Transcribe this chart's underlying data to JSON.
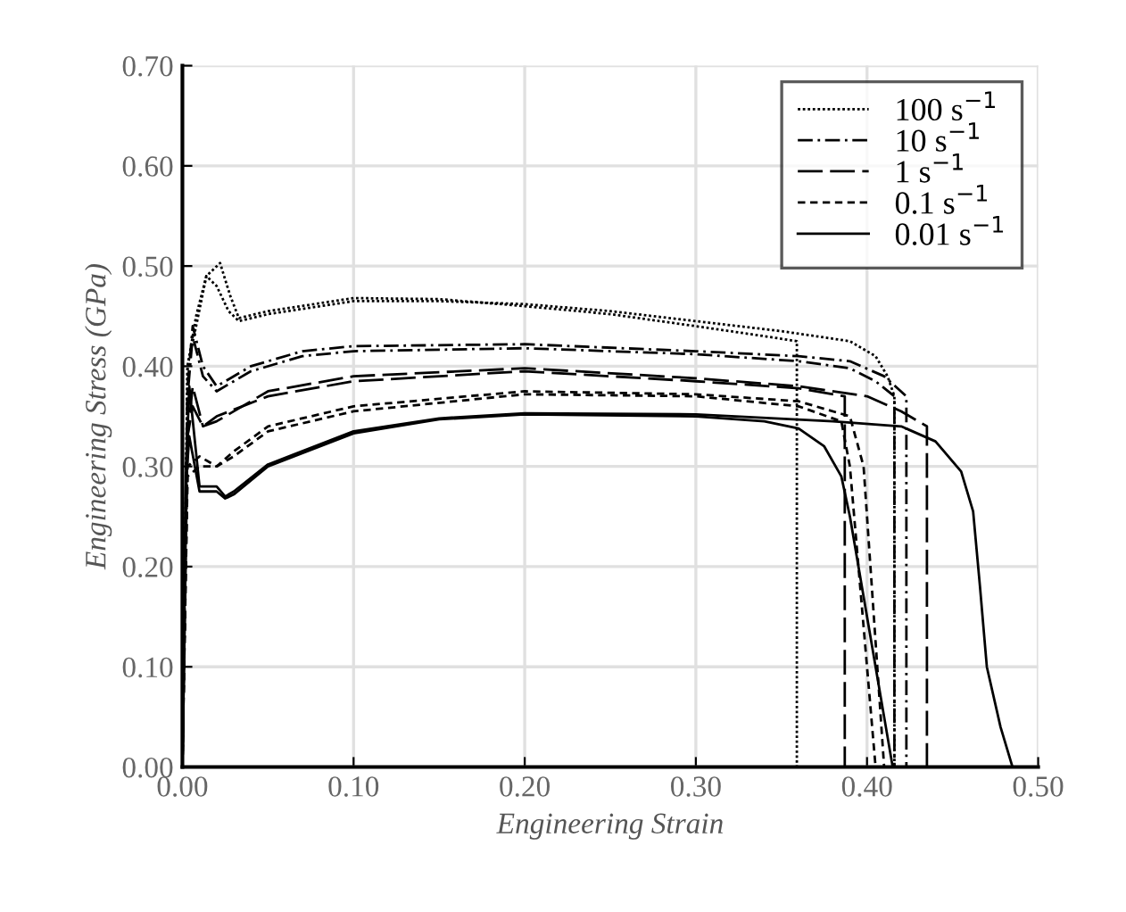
{
  "chart_data": {
    "type": "line",
    "xlabel": "Engineering Strain",
    "ylabel": "Engineering Stress (GPa)",
    "xlim": [
      0,
      0.5
    ],
    "ylim": [
      0,
      0.7
    ],
    "xticks": [
      {
        "value": 0,
        "label": "0.00"
      },
      {
        "value": 0.1,
        "label": "0.10"
      },
      {
        "value": 0.2,
        "label": "0.20"
      },
      {
        "value": 0.3,
        "label": "0.30"
      },
      {
        "value": 0.4,
        "label": "0.40"
      },
      {
        "value": 0.5,
        "label": "0.50"
      }
    ],
    "yticks": [
      {
        "value": 0,
        "label": "0.00"
      },
      {
        "value": 0.1,
        "label": "0.10"
      },
      {
        "value": 0.2,
        "label": "0.20"
      },
      {
        "value": 0.3,
        "label": "0.30"
      },
      {
        "value": 0.4,
        "label": "0.40"
      },
      {
        "value": 0.5,
        "label": "0.50"
      },
      {
        "value": 0.6,
        "label": "0.60"
      },
      {
        "value": 0.7,
        "label": "0.70"
      }
    ],
    "grid": true,
    "legend": "top right",
    "marker": "none",
    "series": [
      {
        "name": "100 s$^{−1}$",
        "color": "#000000",
        "line_style": "dotted",
        "x": [
          0,
          0.003,
          0.008,
          0.014,
          0.022,
          0.028,
          0.033,
          0.05,
          0.1,
          0.15,
          0.2,
          0.25,
          0.3,
          0.34,
          0.359,
          0.359
        ],
        "values": [
          0,
          0.4,
          0.45,
          0.49,
          0.503,
          0.47,
          0.448,
          0.455,
          0.468,
          0.467,
          0.46,
          0.452,
          0.44,
          0.43,
          0.425,
          0
        ]
      },
      {
        "color": "#000000",
        "line_style": "dotted",
        "x": [
          0,
          0.003,
          0.008,
          0.014,
          0.02,
          0.027,
          0.033,
          0.05,
          0.1,
          0.15,
          0.2,
          0.25,
          0.3,
          0.35,
          0.39,
          0.405,
          0.412,
          0.416,
          0.416
        ],
        "values": [
          0,
          0.4,
          0.44,
          0.49,
          0.48,
          0.455,
          0.445,
          0.452,
          0.465,
          0.465,
          0.462,
          0.455,
          0.445,
          0.435,
          0.425,
          0.41,
          0.39,
          0.37,
          0
        ]
      },
      {
        "name": "10 s$^{−1}$",
        "color": "#000000",
        "line_style": "dashdot",
        "x": [
          0,
          0.003,
          0.006,
          0.012,
          0.02,
          0.04,
          0.07,
          0.1,
          0.2,
          0.3,
          0.36,
          0.39,
          0.41,
          0.423,
          0.423
        ],
        "values": [
          0,
          0.38,
          0.44,
          0.4,
          0.38,
          0.4,
          0.415,
          0.42,
          0.422,
          0.415,
          0.41,
          0.405,
          0.39,
          0.37,
          0
        ]
      },
      {
        "color": "#000000",
        "line_style": "dashdot",
        "x": [
          0,
          0.003,
          0.006,
          0.012,
          0.02,
          0.04,
          0.07,
          0.1,
          0.2,
          0.3,
          0.36,
          0.39,
          0.405,
          0.416,
          0.416
        ],
        "values": [
          0,
          0.37,
          0.43,
          0.39,
          0.375,
          0.395,
          0.41,
          0.415,
          0.418,
          0.412,
          0.405,
          0.398,
          0.385,
          0.37,
          0
        ]
      },
      {
        "name": "1 s$^{−1}$",
        "color": "#000000",
        "line_style": "longdash",
        "x": [
          0,
          0.003,
          0.006,
          0.012,
          0.02,
          0.05,
          0.1,
          0.2,
          0.3,
          0.36,
          0.4,
          0.42,
          0.435,
          0.435
        ],
        "values": [
          0,
          0.33,
          0.38,
          0.34,
          0.345,
          0.375,
          0.39,
          0.398,
          0.388,
          0.38,
          0.37,
          0.355,
          0.34,
          0
        ]
      },
      {
        "color": "#000000",
        "line_style": "longdash",
        "x": [
          0,
          0.003,
          0.006,
          0.012,
          0.02,
          0.05,
          0.1,
          0.2,
          0.3,
          0.36,
          0.387,
          0.387
        ],
        "values": [
          0,
          0.33,
          0.36,
          0.34,
          0.35,
          0.37,
          0.385,
          0.395,
          0.385,
          0.378,
          0.37,
          0
        ]
      },
      {
        "name": "0.1 s$^{−1}$",
        "color": "#000000",
        "line_style": "dashed",
        "x": [
          0,
          0.003,
          0.01,
          0.02,
          0.03,
          0.05,
          0.1,
          0.2,
          0.3,
          0.36,
          0.385,
          0.39,
          0.395,
          0.4,
          0.405
        ],
        "values": [
          0,
          0.29,
          0.3,
          0.3,
          0.31,
          0.335,
          0.355,
          0.372,
          0.37,
          0.36,
          0.345,
          0.3,
          0.2,
          0.1,
          0
        ]
      },
      {
        "color": "#000000",
        "line_style": "dashed",
        "x": [
          0,
          0.003,
          0.01,
          0.02,
          0.03,
          0.05,
          0.1,
          0.2,
          0.3,
          0.36,
          0.39,
          0.398,
          0.402,
          0.406,
          0.41
        ],
        "values": [
          0,
          0.3,
          0.31,
          0.3,
          0.315,
          0.34,
          0.36,
          0.375,
          0.372,
          0.365,
          0.35,
          0.3,
          0.2,
          0.1,
          0
        ]
      },
      {
        "name": "0.01 s$^{−1}$",
        "color": "#000000",
        "line_style": "solid",
        "x": [
          0,
          0.002,
          0.004,
          0.01,
          0.02,
          0.025,
          0.03,
          0.05,
          0.1,
          0.15,
          0.2,
          0.3,
          0.34,
          0.36,
          0.375,
          0.385,
          0.39,
          0.4,
          0.41,
          0.415
        ],
        "values": [
          0,
          0.28,
          0.33,
          0.275,
          0.275,
          0.268,
          0.272,
          0.3,
          0.333,
          0.347,
          0.352,
          0.35,
          0.345,
          0.338,
          0.32,
          0.29,
          0.25,
          0.15,
          0.05,
          0
        ]
      },
      {
        "color": "#000000",
        "line_style": "solid",
        "x": [
          0,
          0.002,
          0.004,
          0.01,
          0.02,
          0.025,
          0.03,
          0.05,
          0.1,
          0.15,
          0.2,
          0.3,
          0.38,
          0.42,
          0.44,
          0.455,
          0.462,
          0.466,
          0.47,
          0.478,
          0.485
        ],
        "values": [
          0,
          0.29,
          0.38,
          0.28,
          0.28,
          0.27,
          0.275,
          0.302,
          0.335,
          0.348,
          0.353,
          0.352,
          0.345,
          0.34,
          0.325,
          0.295,
          0.255,
          0.18,
          0.1,
          0.04,
          0
        ]
      }
    ]
  }
}
